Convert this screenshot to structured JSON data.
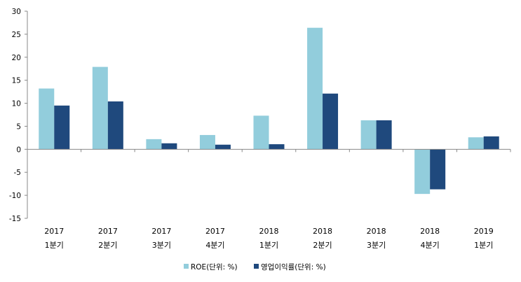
{
  "chart_data": {
    "type": "bar",
    "categories": [
      {
        "year": "2017",
        "quarter": "1분기"
      },
      {
        "year": "2017",
        "quarter": "2분기"
      },
      {
        "year": "2017",
        "quarter": "3분기"
      },
      {
        "year": "2017",
        "quarter": "4분기"
      },
      {
        "year": "2018",
        "quarter": "1분기"
      },
      {
        "year": "2018",
        "quarter": "2분기"
      },
      {
        "year": "2018",
        "quarter": "3분기"
      },
      {
        "year": "2018",
        "quarter": "4분기"
      },
      {
        "year": "2019",
        "quarter": "1분기"
      }
    ],
    "series": [
      {
        "name": "ROE(단위: %)",
        "color": "#92cddc",
        "values": [
          13.2,
          17.9,
          2.2,
          3.1,
          7.3,
          26.4,
          6.3,
          -9.7,
          2.6
        ]
      },
      {
        "name": "영업이익률(단위: %)",
        "color": "#1f497d",
        "values": [
          9.5,
          10.4,
          1.3,
          1.0,
          1.1,
          12.1,
          6.3,
          -8.7,
          2.8
        ]
      }
    ],
    "y_ticks": [
      "30",
      "25",
      "20",
      "15",
      "10",
      "5",
      "0",
      "-5",
      "-10",
      "-15"
    ],
    "ylim": [
      -15,
      30
    ],
    "title": "",
    "xlabel": "",
    "ylabel": "",
    "grid": false,
    "legend_position": "bottom"
  }
}
